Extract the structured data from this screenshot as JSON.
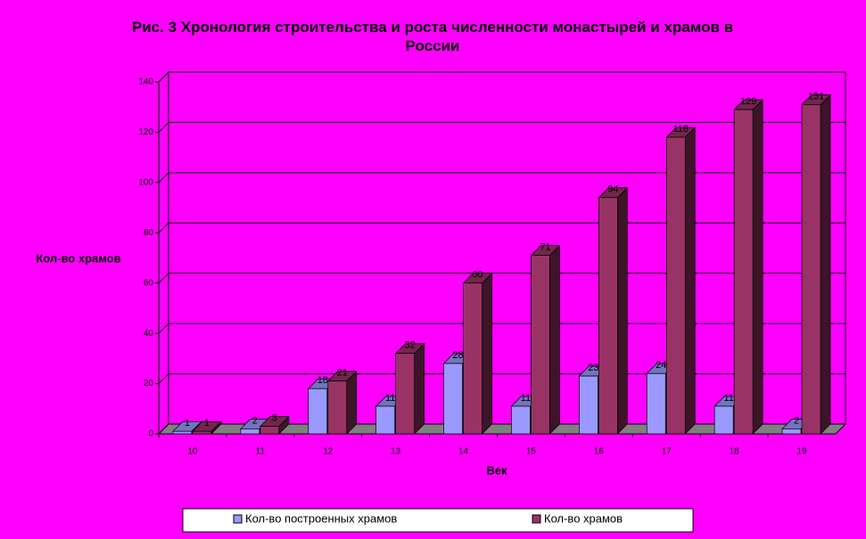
{
  "chart_data": {
    "type": "bar3d",
    "title": "Рис. 3      Хронология строительства и роста численности монастырей и храмов в России",
    "x_label": "Век",
    "y_label": "Кол-во храмов",
    "categories": [
      "10",
      "11",
      "12",
      "13",
      "14",
      "15",
      "16",
      "17",
      "18",
      "19"
    ],
    "series": [
      {
        "name": "Кол-во построенных храмов",
        "color": "#9999ff",
        "values": [
          1,
          2,
          18,
          11,
          28,
          11,
          23,
          24,
          11,
          2
        ]
      },
      {
        "name": "Кол-во храмов",
        "color": "#993366",
        "values": [
          1,
          3,
          21,
          32,
          60,
          71,
          94,
          118,
          129,
          131
        ]
      }
    ],
    "ylim": [
      0,
      140
    ],
    "yticks": [
      0,
      20,
      40,
      60,
      80,
      100,
      120,
      140
    ],
    "grid": true,
    "legend": "bottom"
  }
}
